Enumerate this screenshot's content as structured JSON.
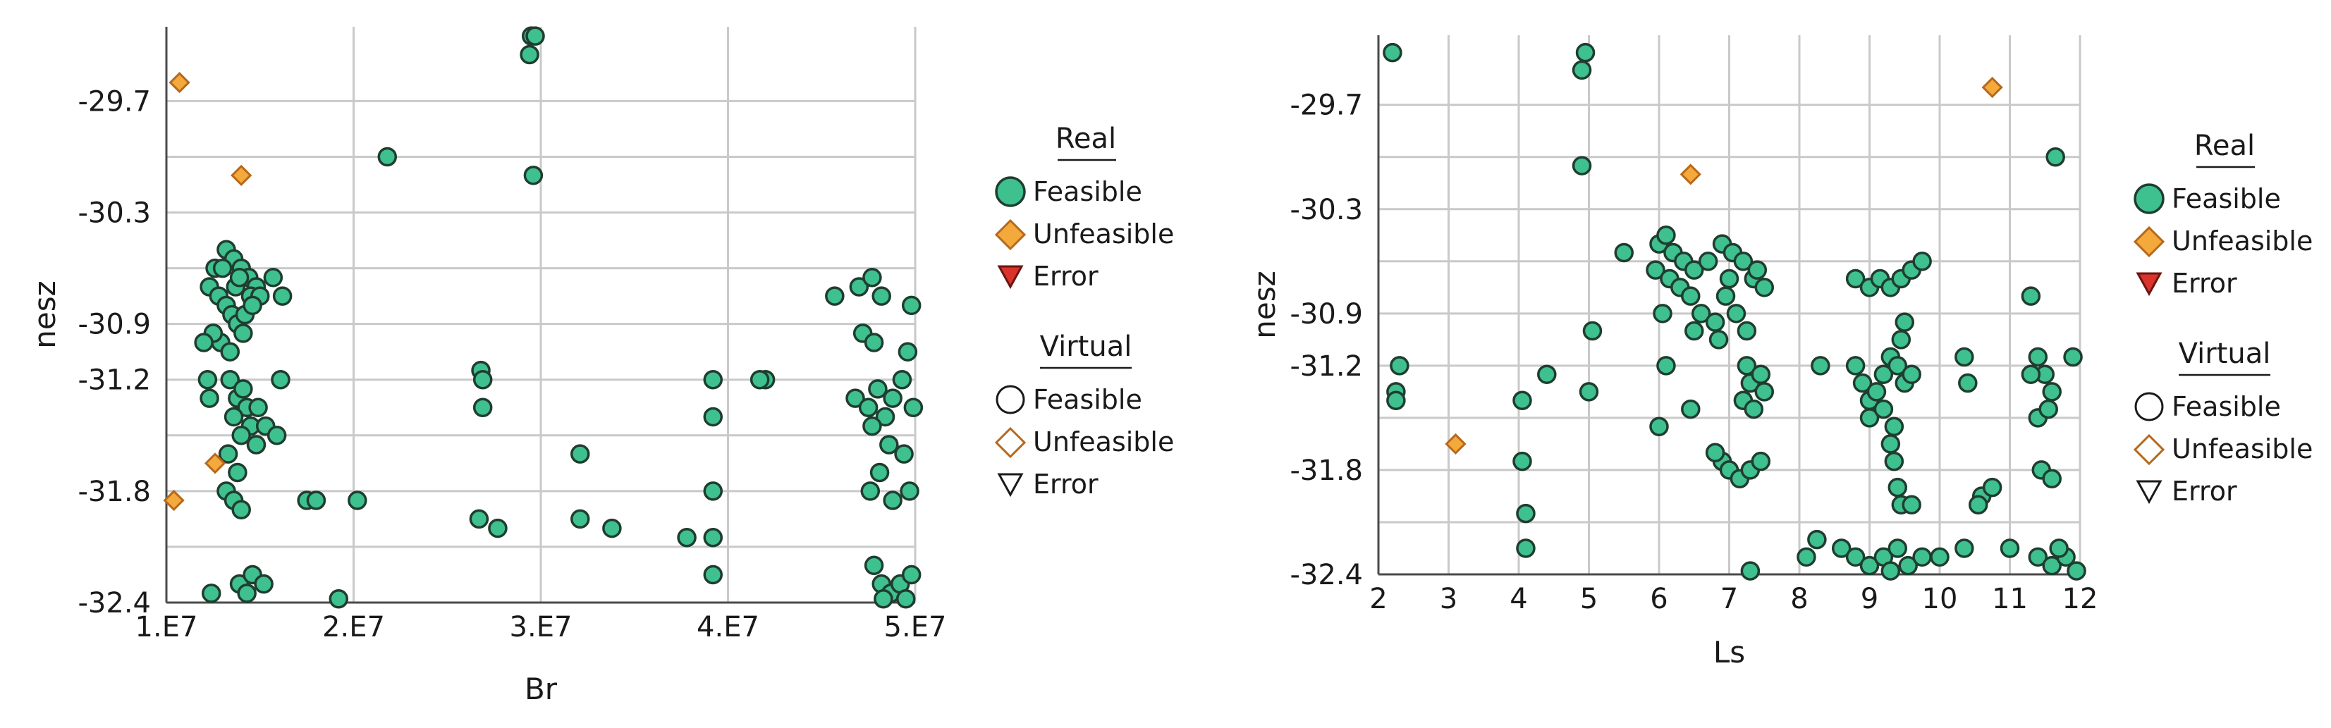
{
  "colors": {
    "feasible_fill": "#3ec08f",
    "feasible_stroke": "#1f3d30",
    "unfeasible_fill": "#f3a93c",
    "unfeasible_stroke": "#b8681a",
    "error_fill": "#d9332b",
    "error_stroke": "#6e1410",
    "grid": "#c9c9c9",
    "axis": "#4a4a4a"
  },
  "legend": {
    "real_heading": "Real",
    "virtual_heading": "Virtual",
    "feasible": "Feasible",
    "unfeasible": "Unfeasible",
    "error": "Error"
  },
  "chart_data": [
    {
      "type": "scatter",
      "xlabel": "Br",
      "ylabel": "nesz",
      "xlim": [
        10000000,
        50000000
      ],
      "ylim": [
        -32.4,
        -29.3
      ],
      "x_ticks": [
        {
          "value": 10000000,
          "label": "1.E7"
        },
        {
          "value": 20000000,
          "label": "2.E7"
        },
        {
          "value": 30000000,
          "label": "3.E7"
        },
        {
          "value": 40000000,
          "label": "4.E7"
        },
        {
          "value": 50000000,
          "label": "5.E7"
        }
      ],
      "y_ticks": [
        {
          "value": -29.7,
          "label": "-29.7"
        },
        {
          "value": -30.3,
          "label": "-30.3"
        },
        {
          "value": -30.9,
          "label": "-30.9"
        },
        {
          "value": -31.2,
          "label": "-31.2"
        },
        {
          "value": -31.8,
          "label": "-31.8"
        },
        {
          "value": -32.4,
          "label": "-32.4"
        }
      ],
      "y_minor": [
        -30.0,
        -30.6,
        -31.5,
        -32.1
      ],
      "grid": true,
      "legend_position": "right",
      "series": [
        {
          "category": "real-feasible",
          "points": [
            [
              21800000,
              -30.0
            ],
            [
              29500000,
              -29.35
            ],
            [
              29700000,
              -29.35
            ],
            [
              29400000,
              -29.45
            ],
            [
              29600000,
              -30.1
            ],
            [
              12600000,
              -30.6
            ],
            [
              13200000,
              -30.5
            ],
            [
              13600000,
              -30.55
            ],
            [
              14000000,
              -30.6
            ],
            [
              14400000,
              -30.65
            ],
            [
              14800000,
              -30.7
            ],
            [
              12300000,
              -30.7
            ],
            [
              12800000,
              -30.75
            ],
            [
              13200000,
              -30.8
            ],
            [
              13500000,
              -30.85
            ],
            [
              13800000,
              -30.9
            ],
            [
              14100000,
              -30.95
            ],
            [
              14500000,
              -30.75
            ],
            [
              15000000,
              -30.75
            ],
            [
              12900000,
              -31.0
            ],
            [
              13400000,
              -31.05
            ],
            [
              13700000,
              -30.7
            ],
            [
              14200000,
              -30.85
            ],
            [
              12500000,
              -30.95
            ],
            [
              15700000,
              -30.65
            ],
            [
              16200000,
              -30.75
            ],
            [
              13000000,
              -30.6
            ],
            [
              13900000,
              -30.65
            ],
            [
              14600000,
              -30.8
            ],
            [
              12000000,
              -31.0
            ],
            [
              12200000,
              -31.2
            ],
            [
              12300000,
              -31.3
            ],
            [
              13400000,
              -31.2
            ],
            [
              13800000,
              -31.3
            ],
            [
              14100000,
              -31.25
            ],
            [
              14300000,
              -31.35
            ],
            [
              14500000,
              -31.45
            ],
            [
              14900000,
              -31.35
            ],
            [
              15300000,
              -31.45
            ],
            [
              15900000,
              -31.5
            ],
            [
              13600000,
              -31.4
            ],
            [
              14000000,
              -31.5
            ],
            [
              14800000,
              -31.55
            ],
            [
              13300000,
              -31.6
            ],
            [
              16100000,
              -31.2
            ],
            [
              13200000,
              -31.8
            ],
            [
              13600000,
              -31.85
            ],
            [
              14000000,
              -31.9
            ],
            [
              13800000,
              -31.7
            ],
            [
              17500000,
              -31.85
            ],
            [
              18000000,
              -31.85
            ],
            [
              20200000,
              -31.85
            ],
            [
              12400000,
              -32.35
            ],
            [
              13900000,
              -32.3
            ],
            [
              14300000,
              -32.35
            ],
            [
              14600000,
              -32.25
            ],
            [
              15200000,
              -32.3
            ],
            [
              19200000,
              -32.38
            ],
            [
              26800000,
              -31.15
            ],
            [
              26900000,
              -31.2
            ],
            [
              26900000,
              -31.35
            ],
            [
              27700000,
              -32.0
            ],
            [
              26700000,
              -31.95
            ],
            [
              32100000,
              -31.6
            ],
            [
              32100000,
              -31.95
            ],
            [
              33800000,
              -32.0
            ],
            [
              39200000,
              -31.2
            ],
            [
              39200000,
              -31.4
            ],
            [
              39200000,
              -31.8
            ],
            [
              37800000,
              -32.05
            ],
            [
              39200000,
              -32.05
            ],
            [
              39200000,
              -32.25
            ],
            [
              42000000,
              -31.2
            ],
            [
              41700000,
              -31.2
            ],
            [
              45700000,
              -30.75
            ],
            [
              47000000,
              -30.7
            ],
            [
              47700000,
              -30.65
            ],
            [
              48200000,
              -30.75
            ],
            [
              49800000,
              -30.8
            ],
            [
              47200000,
              -30.95
            ],
            [
              47800000,
              -31.0
            ],
            [
              49600000,
              -31.05
            ],
            [
              46800000,
              -31.3
            ],
            [
              47500000,
              -31.35
            ],
            [
              48000000,
              -31.25
            ],
            [
              48400000,
              -31.4
            ],
            [
              48800000,
              -31.3
            ],
            [
              49300000,
              -31.2
            ],
            [
              49900000,
              -31.35
            ],
            [
              47700000,
              -31.45
            ],
            [
              48600000,
              -31.55
            ],
            [
              49400000,
              -31.6
            ],
            [
              48100000,
              -31.7
            ],
            [
              47600000,
              -31.8
            ],
            [
              48800000,
              -31.85
            ],
            [
              49700000,
              -31.8
            ],
            [
              47800000,
              -32.2
            ],
            [
              48200000,
              -32.3
            ],
            [
              48700000,
              -32.35
            ],
            [
              49200000,
              -32.3
            ],
            [
              49800000,
              -32.25
            ],
            [
              48300000,
              -32.38
            ],
            [
              49500000,
              -32.38
            ]
          ]
        },
        {
          "category": "real-unfeasible",
          "points": [
            [
              10700000,
              -29.6
            ],
            [
              14000000,
              -30.1
            ],
            [
              12600000,
              -31.65
            ],
            [
              10400000,
              -31.85
            ]
          ]
        }
      ]
    },
    {
      "type": "scatter",
      "xlabel": "Ls",
      "ylabel": "nesz",
      "xlim": [
        2,
        12
      ],
      "ylim": [
        -32.4,
        -29.3
      ],
      "x_ticks": [
        {
          "value": 2,
          "label": "2"
        },
        {
          "value": 3,
          "label": "3"
        },
        {
          "value": 4,
          "label": "4"
        },
        {
          "value": 5,
          "label": "5"
        },
        {
          "value": 6,
          "label": "6"
        },
        {
          "value": 7,
          "label": "7"
        },
        {
          "value": 8,
          "label": "8"
        },
        {
          "value": 9,
          "label": "9"
        },
        {
          "value": 10,
          "label": "10"
        },
        {
          "value": 11,
          "label": "11"
        },
        {
          "value": 12,
          "label": "12"
        }
      ],
      "y_ticks": [
        {
          "value": -29.7,
          "label": "-29.7"
        },
        {
          "value": -30.3,
          "label": "-30.3"
        },
        {
          "value": -30.9,
          "label": "-30.9"
        },
        {
          "value": -31.2,
          "label": "-31.2"
        },
        {
          "value": -31.8,
          "label": "-31.8"
        },
        {
          "value": -32.4,
          "label": "-32.4"
        }
      ],
      "y_minor": [
        -30.0,
        -30.6,
        -31.5,
        -32.1
      ],
      "grid": true,
      "legend_position": "right",
      "series": [
        {
          "category": "real-feasible",
          "points": [
            [
              2.2,
              -29.4
            ],
            [
              4.95,
              -29.4
            ],
            [
              4.9,
              -29.5
            ],
            [
              4.9,
              -30.05
            ],
            [
              11.65,
              -30.0
            ],
            [
              2.3,
              -31.2
            ],
            [
              2.25,
              -31.35
            ],
            [
              2.25,
              -31.4
            ],
            [
              4.05,
              -31.4
            ],
            [
              4.4,
              -31.25
            ],
            [
              4.05,
              -31.75
            ],
            [
              4.1,
              -32.05
            ],
            [
              4.1,
              -32.25
            ],
            [
              5.0,
              -31.35
            ],
            [
              5.05,
              -31.0
            ],
            [
              5.5,
              -30.55
            ],
            [
              6.0,
              -30.5
            ],
            [
              6.1,
              -30.45
            ],
            [
              6.2,
              -30.55
            ],
            [
              6.35,
              -30.6
            ],
            [
              6.5,
              -30.65
            ],
            [
              5.95,
              -30.65
            ],
            [
              6.15,
              -30.7
            ],
            [
              6.3,
              -30.75
            ],
            [
              6.45,
              -30.8
            ],
            [
              6.6,
              -30.9
            ],
            [
              6.8,
              -30.95
            ],
            [
              6.05,
              -30.9
            ],
            [
              6.5,
              -31.0
            ],
            [
              6.7,
              -30.6
            ],
            [
              6.9,
              -30.5
            ],
            [
              7.05,
              -30.55
            ],
            [
              7.2,
              -30.6
            ],
            [
              7.35,
              -30.7
            ],
            [
              7.5,
              -30.75
            ],
            [
              6.95,
              -30.8
            ],
            [
              7.1,
              -30.9
            ],
            [
              7.25,
              -31.0
            ],
            [
              6.85,
              -31.05
            ],
            [
              7.0,
              -30.7
            ],
            [
              7.4,
              -30.65
            ],
            [
              6.1,
              -31.2
            ],
            [
              6.0,
              -31.55
            ],
            [
              6.45,
              -31.45
            ],
            [
              7.25,
              -31.2
            ],
            [
              7.3,
              -31.3
            ],
            [
              7.45,
              -31.25
            ],
            [
              7.2,
              -31.4
            ],
            [
              7.35,
              -31.45
            ],
            [
              7.5,
              -31.35
            ],
            [
              6.9,
              -31.75
            ],
            [
              7.0,
              -31.8
            ],
            [
              7.15,
              -31.85
            ],
            [
              7.3,
              -31.8
            ],
            [
              7.45,
              -31.75
            ],
            [
              6.8,
              -31.7
            ],
            [
              8.3,
              -31.2
            ],
            [
              8.25,
              -32.2
            ],
            [
              8.1,
              -32.3
            ],
            [
              8.6,
              -32.25
            ],
            [
              8.8,
              -30.7
            ],
            [
              9.0,
              -30.75
            ],
            [
              9.15,
              -30.7
            ],
            [
              9.3,
              -30.75
            ],
            [
              9.45,
              -30.7
            ],
            [
              9.6,
              -30.65
            ],
            [
              9.75,
              -30.6
            ],
            [
              9.5,
              -30.95
            ],
            [
              9.45,
              -31.05
            ],
            [
              8.8,
              -31.2
            ],
            [
              8.9,
              -31.3
            ],
            [
              9.0,
              -31.4
            ],
            [
              9.1,
              -31.35
            ],
            [
              9.2,
              -31.25
            ],
            [
              9.3,
              -31.15
            ],
            [
              9.4,
              -31.2
            ],
            [
              9.5,
              -31.3
            ],
            [
              9.6,
              -31.25
            ],
            [
              9.0,
              -31.5
            ],
            [
              9.2,
              -31.45
            ],
            [
              9.35,
              -31.55
            ],
            [
              9.3,
              -31.65
            ],
            [
              9.35,
              -31.75
            ],
            [
              9.4,
              -31.9
            ],
            [
              9.45,
              -32.0
            ],
            [
              9.6,
              -32.0
            ],
            [
              8.8,
              -32.3
            ],
            [
              9.0,
              -32.35
            ],
            [
              9.2,
              -32.3
            ],
            [
              9.4,
              -32.25
            ],
            [
              9.55,
              -32.35
            ],
            [
              9.75,
              -32.3
            ],
            [
              9.3,
              -32.38
            ],
            [
              10.0,
              -32.3
            ],
            [
              10.35,
              -32.25
            ],
            [
              10.35,
              -31.15
            ],
            [
              10.4,
              -31.3
            ],
            [
              10.6,
              -31.95
            ],
            [
              10.75,
              -31.9
            ],
            [
              10.55,
              -32.0
            ],
            [
              11.3,
              -30.8
            ],
            [
              11.4,
              -31.15
            ],
            [
              11.5,
              -31.25
            ],
            [
              11.6,
              -31.35
            ],
            [
              11.4,
              -31.5
            ],
            [
              11.55,
              -31.45
            ],
            [
              11.3,
              -31.25
            ],
            [
              11.9,
              -31.15
            ],
            [
              11.45,
              -31.8
            ],
            [
              11.6,
              -31.85
            ],
            [
              11.0,
              -32.25
            ],
            [
              11.4,
              -32.3
            ],
            [
              11.6,
              -32.35
            ],
            [
              11.8,
              -32.3
            ],
            [
              11.95,
              -32.38
            ],
            [
              11.7,
              -32.25
            ],
            [
              7.3,
              -32.38
            ]
          ]
        },
        {
          "category": "real-unfeasible",
          "points": [
            [
              10.75,
              -29.6
            ],
            [
              6.45,
              -30.1
            ],
            [
              3.1,
              -31.65
            ]
          ]
        }
      ]
    }
  ]
}
